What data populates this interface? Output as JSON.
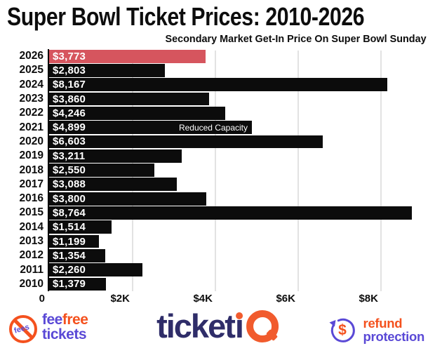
{
  "chart_data": {
    "type": "bar",
    "orientation": "horizontal",
    "title": "Super Bowl Ticket Prices: 2010-2026",
    "subtitle": "Secondary Market Get-In Price On Super Bowl Sunday",
    "categories": [
      "2026",
      "2025",
      "2024",
      "2023",
      "2022",
      "2021",
      "2020",
      "2019",
      "2018",
      "2017",
      "2016",
      "2015",
      "2014",
      "2013",
      "2012",
      "2011",
      "2010"
    ],
    "values": [
      3773,
      2803,
      8167,
      3860,
      4246,
      4899,
      6603,
      3211,
      2550,
      3088,
      3800,
      8764,
      1514,
      1199,
      1354,
      2260,
      1379
    ],
    "value_labels": [
      "$3,773",
      "$2,803",
      "$8,167",
      "$3,860",
      "$4,246",
      "$4,899",
      "$6,603",
      "$3,211",
      "$2,550",
      "$3,088",
      "$3,800",
      "$8,764",
      "$1,514",
      "$1,199",
      "$1,354",
      "$2,260",
      "$1,379"
    ],
    "annotations": [
      {
        "category": "2021",
        "text": "Reduced Capacity"
      }
    ],
    "highlight": {
      "category": "2026",
      "color": "#d6555e"
    },
    "bar_color": "#0c0c0c",
    "xlim": [
      0,
      9250
    ],
    "xticks": [
      {
        "label": "0",
        "value": 0
      },
      {
        "label": "$2K",
        "value": 2000
      },
      {
        "label": "$4K",
        "value": 4000
      },
      {
        "label": "$6K",
        "value": 6000
      },
      {
        "label": "$8K",
        "value": 8000
      }
    ],
    "grid": "vertical",
    "legend": null
  },
  "footer": {
    "feefree": {
      "icon_word": "fees",
      "line1_a": "fee",
      "line1_b": "free",
      "line2": "tickets"
    },
    "ticketiq": {
      "word": "ticket",
      "i": "ı",
      "q_shape": "magnifier"
    },
    "refund": {
      "dollar": "$",
      "line1": "refund",
      "line2": "protection"
    }
  },
  "colors": {
    "purple": "#5a49d6",
    "orange": "#f4511e",
    "logo_navy": "#2f2d69",
    "logo_orange": "#f15b2d",
    "highlight_red": "#d6555e",
    "bar_black": "#0c0c0c"
  }
}
